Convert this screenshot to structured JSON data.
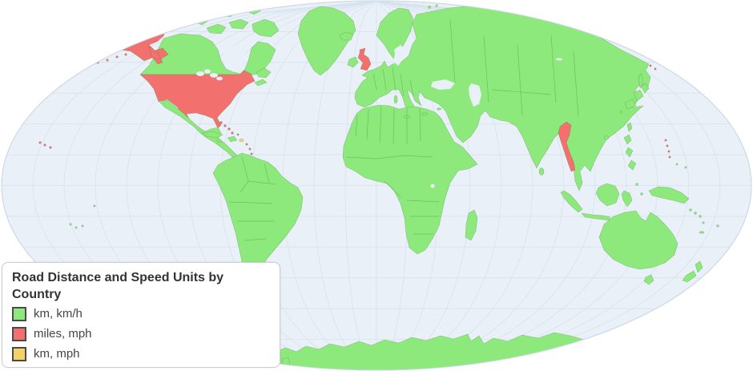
{
  "legend": {
    "title": "Road Distance and Speed Units by Country",
    "items": [
      {
        "key": "km_kmh",
        "label": "km, km/h",
        "color": "#8de97b",
        "border": "#4a4a4a"
      },
      {
        "key": "miles_mph",
        "label": "miles, mph",
        "color": "#f2706d",
        "border": "#4a4a4a"
      },
      {
        "key": "km_mph",
        "label": "km, mph",
        "color": "#f2d368",
        "border": "#4a4a4a"
      }
    ]
  },
  "map": {
    "type": "choropleth-world-map",
    "projection": "robinson-like-ellipse",
    "graticule_spacing_degrees": 15,
    "colors": {
      "ocean": "#e9f0f8",
      "graticule": "#d7e2ee",
      "outline": "#ccd8e4",
      "km_kmh": "#8de97b",
      "miles_mph": "#f2706d",
      "km_mph": "#f2d368"
    },
    "regions": {
      "canada": "km_kmh",
      "arctic-islands": "km_kmh",
      "greenland": "km_kmh",
      "iceland": "km_kmh",
      "newfoundland": "km_kmh",
      "nova-scotia": "km_kmh",
      "mexico-central-america": "km_kmh",
      "cuba": "km_kmh",
      "hispaniola": "km_kmh",
      "jamaica": "km_kmh",
      "trinidad": "km_kmh",
      "south-america": "km_kmh",
      "ireland": "km_kmh",
      "scandinavia": "km_kmh",
      "svalbard": "km_kmh",
      "eurasia": "km_kmh",
      "africa": "km_kmh",
      "madagascar": "km_kmh",
      "sri-lanka": "km_kmh",
      "sumatra": "km_kmh",
      "java": "km_kmh",
      "borneo": "km_kmh",
      "sulawesi": "km_kmh",
      "philippines": "km_kmh",
      "new-guinea": "km_kmh",
      "moluccas": "km_kmh",
      "taiwan": "km_kmh",
      "hainan": "km_kmh",
      "japan": "km_kmh",
      "sakhalin": "km_kmh",
      "mediterranean-islands": "km_kmh",
      "australia": "km_kmh",
      "tasmania": "km_kmh",
      "new-zealand": "km_kmh",
      "melanesia": "km_kmh",
      "polynesia": "km_kmh",
      "antarctica": "km_kmh",
      "united-states": "miles_mph",
      "alaska": "miles_mph",
      "aleutian-islands": "miles_mph",
      "hawaii": "miles_mph",
      "bering-islands": "miles_mph",
      "united-kingdom": "miles_mph",
      "myanmar": "miles_mph",
      "bahamas": "miles_mph",
      "turks-caicos": "miles_mph",
      "lesser-antilles": "miles_mph",
      "guam-marianas": "miles_mph",
      "puerto-rico": "km_mph"
    }
  }
}
